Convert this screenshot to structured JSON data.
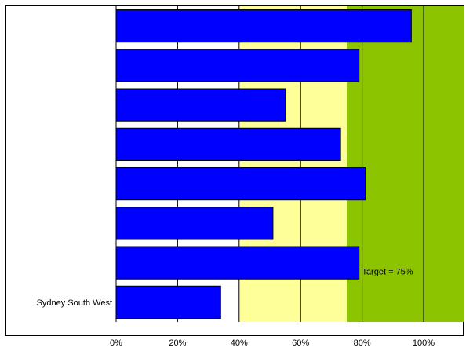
{
  "chart_data": {
    "type": "bar",
    "orientation": "horizontal",
    "categories": [
      "",
      "",
      "",
      "",
      "",
      "",
      "",
      "Sydney South West"
    ],
    "values": [
      96,
      79,
      55,
      73,
      81,
      51,
      79,
      34
    ],
    "xlim": [
      0,
      100
    ],
    "xticks": [
      "0%",
      "20%",
      "40%",
      "60%",
      "80%",
      "100%"
    ],
    "bands": [
      {
        "from": 40,
        "to": 75,
        "color": "#ffff99"
      },
      {
        "from": 75,
        "to": 100,
        "color": "#8cc400"
      }
    ],
    "target": {
      "value": 75,
      "label": "Target = 75%"
    },
    "bar_color": "#0000ff",
    "grid": true
  }
}
